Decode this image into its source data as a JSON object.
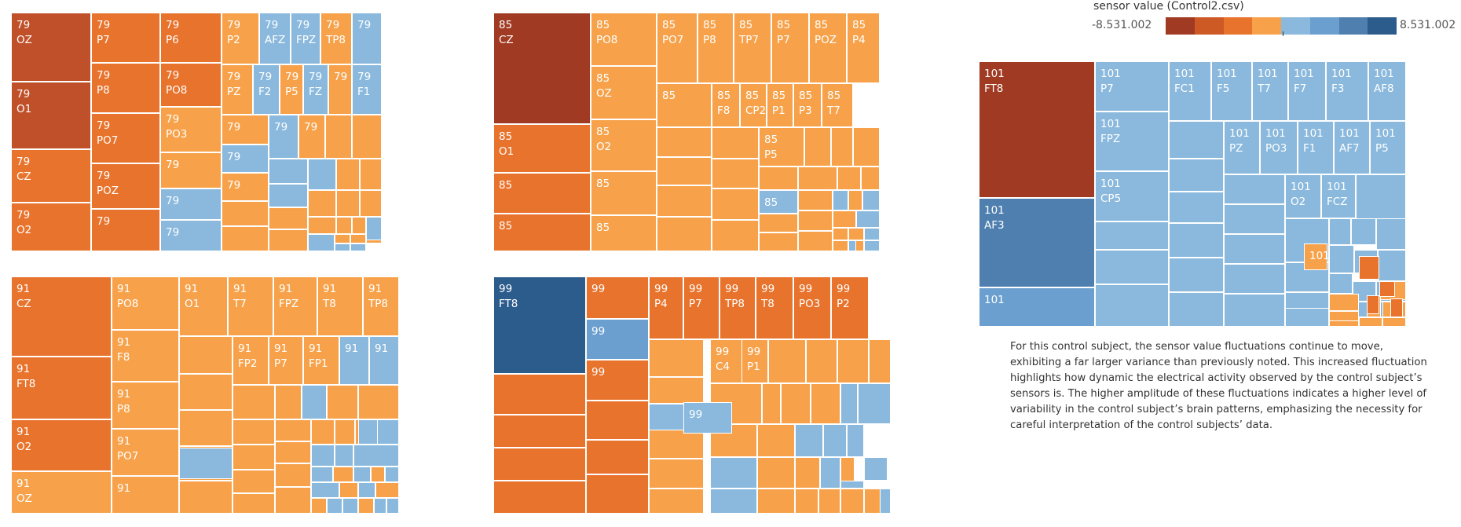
{
  "legend": {
    "title": "sensor value (Control2.csv)",
    "min_label": "-8.531.002",
    "max_label": "8.531.002",
    "color_steps": [
      "#a03a23",
      "#cd5a24",
      "#e8732c",
      "#f7a24a",
      "#8ab9dd",
      "#6b9fcf",
      "#4e7faf",
      "#2c5c8c"
    ]
  },
  "caption": "For this control subject, the sensor value fluctuations continue to move, exhibiting a far larger variance than previously noted. This increased fluctuation highlights how dynamic the electrical activity observed by the control subject’s sensors is. The higher amplitude of these fluctuations indicates a higher level of variability in the control subject’s brain patterns, emphasizing the necessity for careful interpretation of the control subjects’ data.",
  "chart_data": [
    {
      "type": "heatmap",
      "subject": "79",
      "labeled_tiles": [
        {
          "sensor": "OZ",
          "color": "#c0502a"
        },
        {
          "sensor": "O1",
          "color": "#c0502a"
        },
        {
          "sensor": "CZ",
          "color": "#e8732c"
        },
        {
          "sensor": "O2",
          "color": "#e8732c"
        },
        {
          "sensor": "P7",
          "color": "#e8732c"
        },
        {
          "sensor": "P8",
          "color": "#e8732c"
        },
        {
          "sensor": "PO7",
          "color": "#e8732c"
        },
        {
          "sensor": "POZ",
          "color": "#e8732c"
        },
        {
          "sensor": "",
          "color": "#e8732c"
        },
        {
          "sensor": "P6",
          "color": "#e8732c"
        },
        {
          "sensor": "PO8",
          "color": "#e8732c"
        },
        {
          "sensor": "PO3",
          "color": "#f7a24a"
        },
        {
          "sensor": "",
          "color": "#f7a24a"
        },
        {
          "sensor": "",
          "color": "#8ab9dd"
        },
        {
          "sensor": "",
          "color": "#8ab9dd"
        },
        {
          "sensor": "P2",
          "color": "#f7a24a"
        },
        {
          "sensor": "AFZ",
          "color": "#8ab9dd"
        },
        {
          "sensor": "FPZ",
          "color": "#8ab9dd"
        },
        {
          "sensor": "TP8",
          "color": "#f7a24a"
        },
        {
          "sensor": "",
          "color": "#8ab9dd"
        },
        {
          "sensor": "PZ",
          "color": "#f7a24a"
        },
        {
          "sensor": "F2",
          "color": "#8ab9dd"
        },
        {
          "sensor": "P5",
          "color": "#f7a24a"
        },
        {
          "sensor": "FZ",
          "color": "#8ab9dd"
        },
        {
          "sensor": "",
          "color": "#f7a24a"
        },
        {
          "sensor": "F1",
          "color": "#8ab9dd"
        },
        {
          "sensor": "",
          "color": "#f7a24a"
        },
        {
          "sensor": "",
          "color": "#8ab9dd"
        },
        {
          "sensor": "",
          "color": "#f7a24a"
        },
        {
          "sensor": "",
          "color": "#8ab9dd"
        },
        {
          "sensor": "",
          "color": "#f7a24a"
        }
      ]
    },
    {
      "type": "heatmap",
      "subject": "85",
      "labeled_tiles": [
        {
          "sensor": "CZ",
          "color": "#a03a23"
        },
        {
          "sensor": "O1",
          "color": "#e8732c"
        },
        {
          "sensor": "",
          "color": "#e8732c"
        },
        {
          "sensor": "",
          "color": "#e8732c"
        },
        {
          "sensor": "PO8",
          "color": "#f7a24a"
        },
        {
          "sensor": "OZ",
          "color": "#f7a24a"
        },
        {
          "sensor": "O2",
          "color": "#f7a24a"
        },
        {
          "sensor": "",
          "color": "#f7a24a"
        },
        {
          "sensor": "",
          "color": "#f7a24a"
        },
        {
          "sensor": "PO7",
          "color": "#f7a24a"
        },
        {
          "sensor": "P8",
          "color": "#f7a24a"
        },
        {
          "sensor": "TP7",
          "color": "#f7a24a"
        },
        {
          "sensor": "P7",
          "color": "#f7a24a"
        },
        {
          "sensor": "POZ",
          "color": "#f7a24a"
        },
        {
          "sensor": "P4",
          "color": "#f7a24a"
        },
        {
          "sensor": "",
          "color": "#f7a24a"
        },
        {
          "sensor": "F8",
          "color": "#f7a24a"
        },
        {
          "sensor": "CP2",
          "color": "#f7a24a"
        },
        {
          "sensor": "P1",
          "color": "#f7a24a"
        },
        {
          "sensor": "P3",
          "color": "#f7a24a"
        },
        {
          "sensor": "T7",
          "color": "#f7a24a"
        },
        {
          "sensor": "P5",
          "color": "#f7a24a"
        },
        {
          "sensor": "",
          "color": "#8ab9dd"
        }
      ]
    },
    {
      "type": "heatmap",
      "subject": "91",
      "labeled_tiles": [
        {
          "sensor": "CZ",
          "color": "#e8732c"
        },
        {
          "sensor": "FT8",
          "color": "#e8732c"
        },
        {
          "sensor": "O2",
          "color": "#e8732c"
        },
        {
          "sensor": "OZ",
          "color": "#f7a24a"
        },
        {
          "sensor": "PO8",
          "color": "#f7a24a"
        },
        {
          "sensor": "F8",
          "color": "#f7a24a"
        },
        {
          "sensor": "P8",
          "color": "#f7a24a"
        },
        {
          "sensor": "PO7",
          "color": "#f7a24a"
        },
        {
          "sensor": "",
          "color": "#f7a24a"
        },
        {
          "sensor": "O1",
          "color": "#f7a24a"
        },
        {
          "sensor": "T7",
          "color": "#f7a24a"
        },
        {
          "sensor": "FPZ",
          "color": "#f7a24a"
        },
        {
          "sensor": "T8",
          "color": "#f7a24a"
        },
        {
          "sensor": "TP8",
          "color": "#f7a24a"
        },
        {
          "sensor": "FP2",
          "color": "#f7a24a"
        },
        {
          "sensor": "P7",
          "color": "#f7a24a"
        },
        {
          "sensor": "FP1",
          "color": "#f7a24a"
        },
        {
          "sensor": "",
          "color": "#8ab9dd"
        },
        {
          "sensor": "",
          "color": "#8ab9dd"
        }
      ]
    },
    {
      "type": "heatmap",
      "subject": "99",
      "labeled_tiles": [
        {
          "sensor": "FT8",
          "color": "#2c5c8c"
        },
        {
          "sensor": "",
          "color": "#e8732c"
        },
        {
          "sensor": "",
          "color": "#6b9fcf"
        },
        {
          "sensor": "",
          "color": "#e8732c"
        },
        {
          "sensor": "P4",
          "color": "#e8732c"
        },
        {
          "sensor": "P7",
          "color": "#e8732c"
        },
        {
          "sensor": "TP8",
          "color": "#e8732c"
        },
        {
          "sensor": "T8",
          "color": "#e8732c"
        },
        {
          "sensor": "PO3",
          "color": "#e8732c"
        },
        {
          "sensor": "P2",
          "color": "#e8732c"
        },
        {
          "sensor": "C4",
          "color": "#f7a24a"
        },
        {
          "sensor": "P1",
          "color": "#f7a24a"
        },
        {
          "sensor": "",
          "color": "#8ab9dd"
        }
      ]
    },
    {
      "type": "heatmap",
      "subject": "101",
      "labeled_tiles": [
        {
          "sensor": "FT8",
          "color": "#a03a23"
        },
        {
          "sensor": "AF3",
          "color": "#4e7faf"
        },
        {
          "sensor": "",
          "color": "#6b9fcf"
        },
        {
          "sensor": "P7",
          "color": "#8ab9dd"
        },
        {
          "sensor": "FPZ",
          "color": "#8ab9dd"
        },
        {
          "sensor": "CP5",
          "color": "#8ab9dd"
        },
        {
          "sensor": "FC1",
          "color": "#8ab9dd"
        },
        {
          "sensor": "F5",
          "color": "#8ab9dd"
        },
        {
          "sensor": "T7",
          "color": "#8ab9dd"
        },
        {
          "sensor": "F7",
          "color": "#8ab9dd"
        },
        {
          "sensor": "F3",
          "color": "#8ab9dd"
        },
        {
          "sensor": "AF8",
          "color": "#8ab9dd"
        },
        {
          "sensor": "PZ",
          "color": "#8ab9dd"
        },
        {
          "sensor": "PO3",
          "color": "#8ab9dd"
        },
        {
          "sensor": "F1",
          "color": "#8ab9dd"
        },
        {
          "sensor": "AF7",
          "color": "#8ab9dd"
        },
        {
          "sensor": "P5",
          "color": "#8ab9dd"
        },
        {
          "sensor": "O2",
          "color": "#8ab9dd"
        },
        {
          "sensor": "FCZ",
          "color": "#8ab9dd"
        },
        {
          "sensor": "",
          "color": "#f7a24a"
        }
      ]
    }
  ]
}
